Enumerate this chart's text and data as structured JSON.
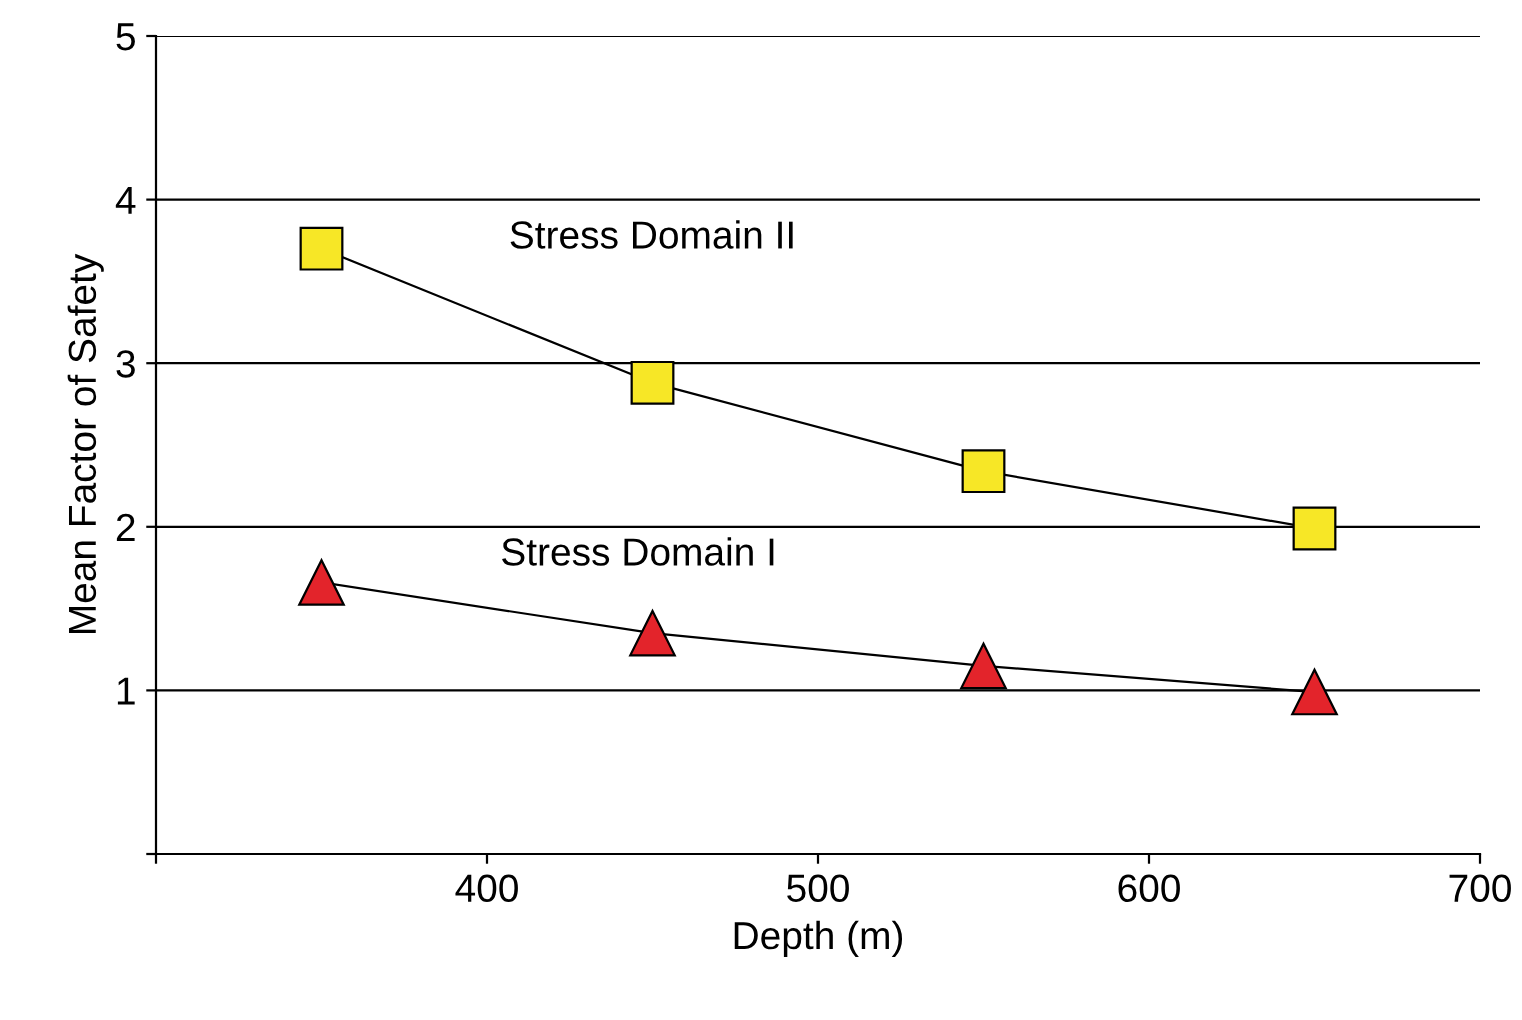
{
  "chart_data": {
    "type": "line",
    "xlabel": "Depth (m)",
    "ylabel": "Mean Factor of Safety",
    "x": [
      350,
      450,
      550,
      650
    ],
    "series": [
      {
        "name": "Stress Domain II",
        "color": "#f7e726",
        "marker": "square",
        "values": [
          3.7,
          2.88,
          2.34,
          1.99
        ]
      },
      {
        "name": "Stress Domain I",
        "color": "#e3242b",
        "marker": "triangle",
        "values": [
          1.66,
          1.35,
          1.15,
          0.99
        ]
      }
    ],
    "xlim": [
      300,
      700
    ],
    "xticks": [
      {
        "value": 300,
        "label": null
      },
      400,
      500,
      600,
      700
    ],
    "ylim": [
      0,
      5
    ],
    "yticks": [
      {
        "value": 0,
        "label": null
      },
      1,
      2,
      3,
      4,
      5
    ],
    "grid": "y",
    "legend": false,
    "line_style": "solid"
  }
}
